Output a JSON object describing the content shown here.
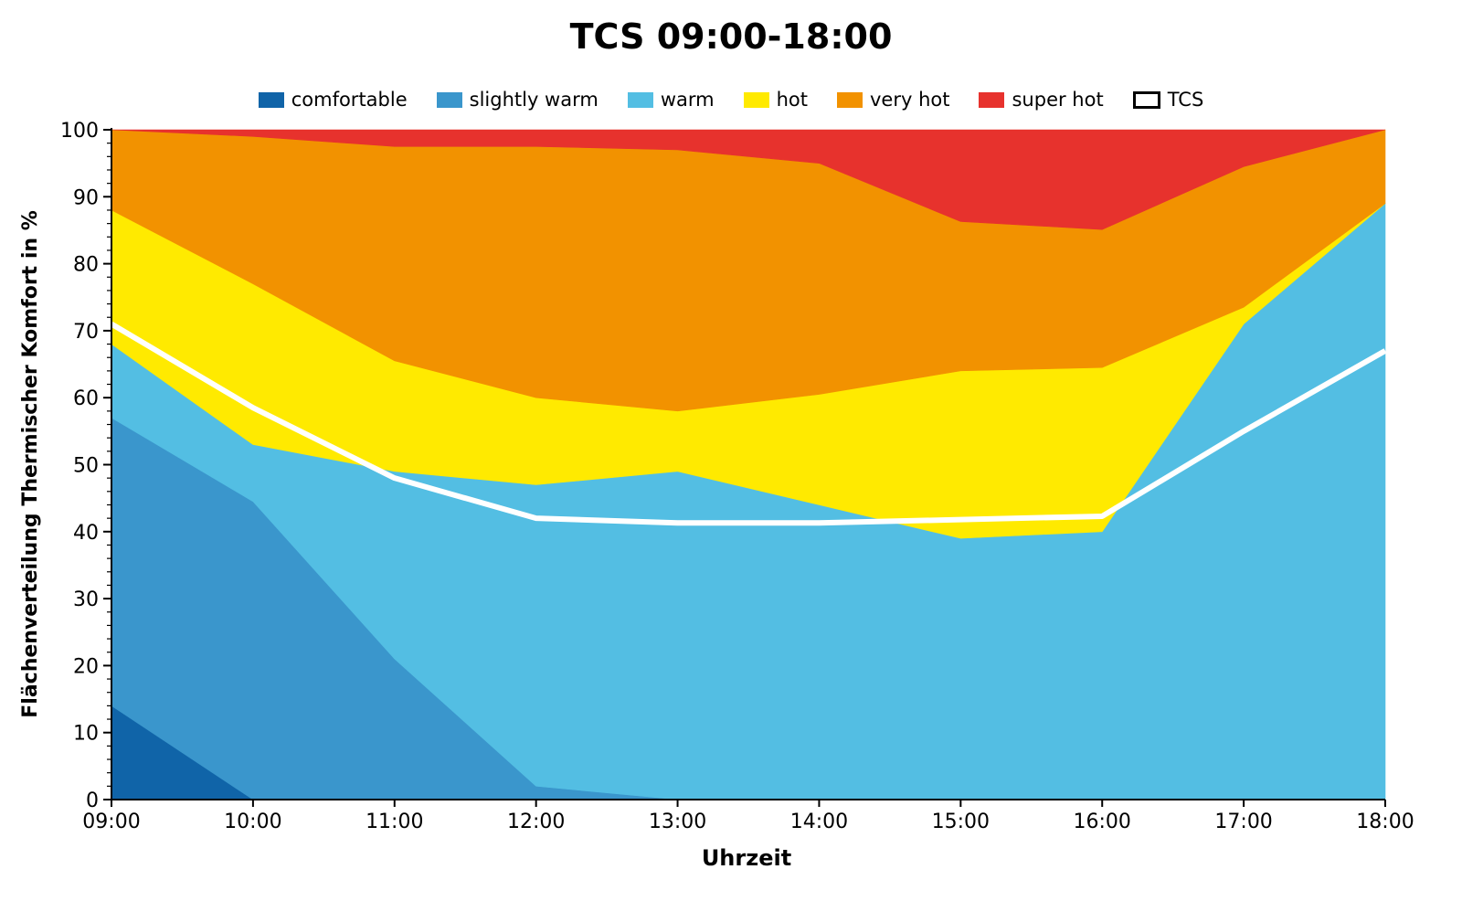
{
  "chart_data": {
    "type": "area",
    "title": "TCS 09:00-18:00",
    "xlabel": "Uhrzeit",
    "ylabel": "Flächenverteilung Thermischer Komfort in %",
    "ylim": [
      0,
      100
    ],
    "yticks": [
      0,
      10,
      20,
      30,
      40,
      50,
      60,
      70,
      80,
      90,
      100
    ],
    "categories": [
      "09:00",
      "10:00",
      "11:00",
      "12:00",
      "13:00",
      "14:00",
      "15:00",
      "16:00",
      "17:00",
      "18:00"
    ],
    "stacked": true,
    "legend_position": "top-center",
    "grid": false,
    "series": [
      {
        "name": "comfortable",
        "color": "#1064a8",
        "values": [
          14,
          0,
          0,
          0,
          0,
          0,
          0,
          0,
          0,
          0
        ]
      },
      {
        "name": "slightly warm",
        "color": "#3a96cc",
        "values": [
          43,
          44.5,
          21,
          2,
          0,
          0,
          0,
          0,
          0,
          0
        ]
      },
      {
        "name": "warm",
        "color": "#53bee3",
        "values": [
          11,
          8.5,
          28,
          45,
          49,
          44,
          39,
          40,
          71,
          89
        ]
      },
      {
        "name": "hot",
        "color": "#ffea00",
        "values": [
          20,
          24,
          16.5,
          13,
          9,
          16.5,
          25,
          24.5,
          2.5,
          0
        ]
      },
      {
        "name": "very hot",
        "color": "#f29200",
        "values": [
          12,
          22,
          32,
          37.5,
          39,
          34.5,
          22.3,
          20.6,
          21,
          11
        ]
      },
      {
        "name": "super hot",
        "color": "#e7322d",
        "values": [
          0,
          1,
          2.5,
          2.5,
          3,
          5,
          13.7,
          14.9,
          5.5,
          0
        ]
      }
    ],
    "line_series": {
      "name": "TCS",
      "color": "#ffffff",
      "values": [
        71,
        58.5,
        48,
        42,
        41.3,
        41.3,
        41.8,
        42.3,
        55,
        67
      ]
    }
  }
}
